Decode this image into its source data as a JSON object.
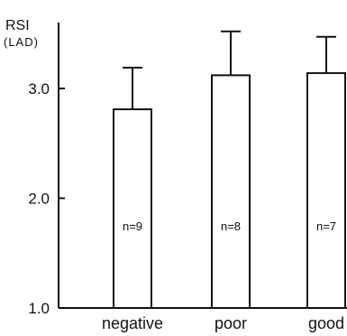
{
  "chart_data": {
    "type": "bar",
    "ylabel": "RSI",
    "yunit": "(LAD)",
    "xlabel": "",
    "categories": [
      "negative",
      "poor",
      "good"
    ],
    "values": [
      2.81,
      3.12,
      3.14
    ],
    "error_upper": [
      3.19,
      3.52,
      3.47
    ],
    "n_labels": [
      "n=9",
      "n=8",
      "n=7"
    ],
    "ylim": [
      1.0,
      3.6
    ],
    "yticks": [
      1.0,
      2.0,
      3.0
    ],
    "ytick_labels": [
      "1.0",
      "2.0",
      "3.0"
    ],
    "grid": false,
    "legend": "none",
    "colors": {
      "bar_fill": "#ffffff",
      "stroke": "#111111"
    }
  }
}
